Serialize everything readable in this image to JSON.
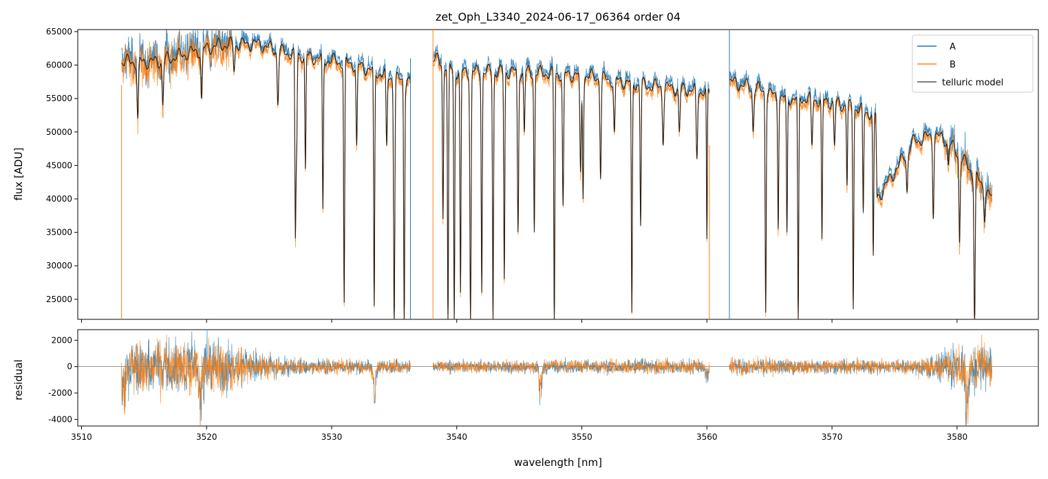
{
  "chart_data": [
    {
      "type": "line",
      "title": "zet_Oph_L3340_2024-06-17_06364  order 04",
      "xlabel": "",
      "ylabel": "flux [ADU]",
      "xlim": [
        3509.7,
        3586.5
      ],
      "ylim": [
        22000,
        65300
      ],
      "yticks": [
        25000,
        30000,
        35000,
        40000,
        45000,
        50000,
        55000,
        60000,
        65000
      ],
      "xticks": [
        3510,
        3520,
        3530,
        3540,
        3550,
        3560,
        3570,
        3580
      ],
      "legend": {
        "position": "top-right",
        "entries": [
          {
            "label": "A",
            "color": "#1f77b4"
          },
          {
            "label": "B",
            "color": "#ff7f0e"
          },
          {
            "label": "telluric model",
            "color": "#555555"
          }
        ]
      },
      "segments": [
        {
          "x_start": 3513.2,
          "x_end": 3536.3,
          "continuum": [
            [
              3513.2,
              60500
            ],
            [
              3516,
              60500
            ],
            [
              3519,
              62000
            ],
            [
              3521,
              63000
            ],
            [
              3524,
              63200
            ],
            [
              3526,
              62000
            ],
            [
              3529,
              61000
            ],
            [
              3532,
              60000
            ],
            [
              3535,
              58000
            ],
            [
              3536.3,
              57500
            ]
          ],
          "lines": [
            [
              3514.5,
              52000,
              0.08
            ],
            [
              3516.5,
              54000,
              0.08
            ],
            [
              3519.6,
              55000,
              0.08
            ],
            [
              3522.2,
              59000,
              0.08
            ],
            [
              3525.7,
              54000,
              0.08
            ],
            [
              3527.1,
              35000,
              0.06
            ],
            [
              3527.2,
              48000,
              0.06
            ],
            [
              3527.9,
              44500,
              0.06
            ],
            [
              3529.3,
              38500,
              0.06
            ],
            [
              3531.0,
              24500,
              0.06
            ],
            [
              3532.0,
              48000,
              0.07
            ],
            [
              3533.4,
              24000,
              0.06
            ],
            [
              3534.4,
              48000,
              0.07
            ],
            [
              3535.0,
              21000,
              0.07
            ],
            [
              3535.8,
              21000,
              0.06
            ]
          ]
        },
        {
          "x_start": 3538.1,
          "x_end": 3560.2,
          "continuum": [
            [
              3538.1,
              61000
            ],
            [
              3540,
              59000
            ],
            [
              3545,
              59000
            ],
            [
              3550,
              58500
            ],
            [
              3555,
              57000
            ],
            [
              3560.2,
              56000
            ]
          ],
          "lines": [
            [
              3538.9,
              37000,
              0.06
            ],
            [
              3539.3,
              21000,
              0.06
            ],
            [
              3539.8,
              22000,
              0.06
            ],
            [
              3540.3,
              26000,
              0.06
            ],
            [
              3541.1,
              22000,
              0.07
            ],
            [
              3542.0,
              26000,
              0.06
            ],
            [
              3542.9,
              22000,
              0.06
            ],
            [
              3543.8,
              28000,
              0.06
            ],
            [
              3544.9,
              35000,
              0.07
            ],
            [
              3545.4,
              50000,
              0.07
            ],
            [
              3546.2,
              35000,
              0.06
            ],
            [
              3547.8,
              21000,
              0.06
            ],
            [
              3548.5,
              39000,
              0.07
            ],
            [
              3549.9,
              44000,
              0.08
            ],
            [
              3550.1,
              40000,
              0.06
            ],
            [
              3551.5,
              43000,
              0.07
            ],
            [
              3552.6,
              50000,
              0.08
            ],
            [
              3554.0,
              23000,
              0.06
            ],
            [
              3554.7,
              36000,
              0.06
            ],
            [
              3556.5,
              48000,
              0.08
            ],
            [
              3557.8,
              50000,
              0.08
            ],
            [
              3559.2,
              46000,
              0.08
            ],
            [
              3560.0,
              34000,
              0.05
            ]
          ]
        },
        {
          "x_start": 3561.8,
          "x_end": 3582.8,
          "continuum": [
            [
              3561.8,
              57500
            ],
            [
              3564,
              56500
            ],
            [
              3566,
              55000
            ],
            [
              3568,
              55000
            ],
            [
              3570,
              54500
            ],
            [
              3572,
              53500
            ],
            [
              3573.5,
              52500
            ],
            [
              3573.6,
              40000
            ],
            [
              3575,
              44000
            ],
            [
              3576.5,
              48500
            ],
            [
              3578,
              49500
            ],
            [
              3579,
              49000
            ],
            [
              3580,
              47000
            ],
            [
              3581,
              44500
            ],
            [
              3582.8,
              40000
            ]
          ],
          "lines": [
            [
              3563.7,
              50000,
              0.08
            ],
            [
              3564.7,
              23000,
              0.06
            ],
            [
              3565.7,
              35500,
              0.06
            ],
            [
              3566.4,
              35000,
              0.06
            ],
            [
              3567.3,
              22000,
              0.06
            ],
            [
              3568.4,
              48000,
              0.08
            ],
            [
              3569.2,
              34000,
              0.06
            ],
            [
              3570.2,
              48000,
              0.08
            ],
            [
              3571.2,
              42000,
              0.06
            ],
            [
              3571.7,
              23500,
              0.06
            ],
            [
              3572.5,
              38000,
              0.06
            ],
            [
              3573.3,
              31500,
              0.06
            ],
            [
              3576.0,
              41000,
              0.08
            ],
            [
              3578.1,
              37000,
              0.07
            ],
            [
              3579.3,
              45000,
              0.07
            ],
            [
              3580.2,
              33500,
              0.07
            ],
            [
              3581.4,
              21000,
              0.07
            ],
            [
              3582.2,
              36500,
              0.07
            ]
          ]
        }
      ],
      "spikes": [
        {
          "x": 3538.1,
          "top": 65300,
          "series": "B"
        },
        {
          "x": 3561.8,
          "top": 65300,
          "series": "A"
        },
        {
          "x": 3513.2,
          "top": 57000,
          "series": "B"
        },
        {
          "x": 3536.3,
          "top": 61000,
          "series": "A"
        },
        {
          "x": 3560.2,
          "top": 48000,
          "series": "B"
        }
      ]
    },
    {
      "type": "line",
      "title": "",
      "xlabel": "wavelength [nm]",
      "ylabel": "residual",
      "xlim": [
        3509.7,
        3586.5
      ],
      "ylim": [
        -4500,
        2800
      ],
      "yticks": [
        -4000,
        -2000,
        0,
        2000
      ],
      "xticks": [
        3510,
        3520,
        3530,
        3540,
        3550,
        3560,
        3570,
        3580
      ],
      "zero_line": 0,
      "noise_envelope": [
        [
          3513.2,
          3000
        ],
        [
          3514,
          3000
        ],
        [
          3516,
          3500
        ],
        [
          3518,
          3000
        ],
        [
          3521,
          3500
        ],
        [
          3524,
          1500
        ],
        [
          3528,
          900
        ],
        [
          3536.3,
          800
        ],
        [
          3538.1,
          700
        ],
        [
          3560.2,
          900
        ],
        [
          3561.8,
          1000
        ],
        [
          3575,
          800
        ],
        [
          3578,
          1300
        ],
        [
          3580,
          2500
        ],
        [
          3582.8,
          3000
        ]
      ],
      "dips": [
        [
          3513.4,
          -3800
        ],
        [
          3519.5,
          -4400
        ],
        [
          3533.4,
          -3000
        ],
        [
          3546.7,
          -3000
        ],
        [
          3560.0,
          -1200
        ],
        [
          3580.8,
          -4400
        ]
      ]
    }
  ]
}
